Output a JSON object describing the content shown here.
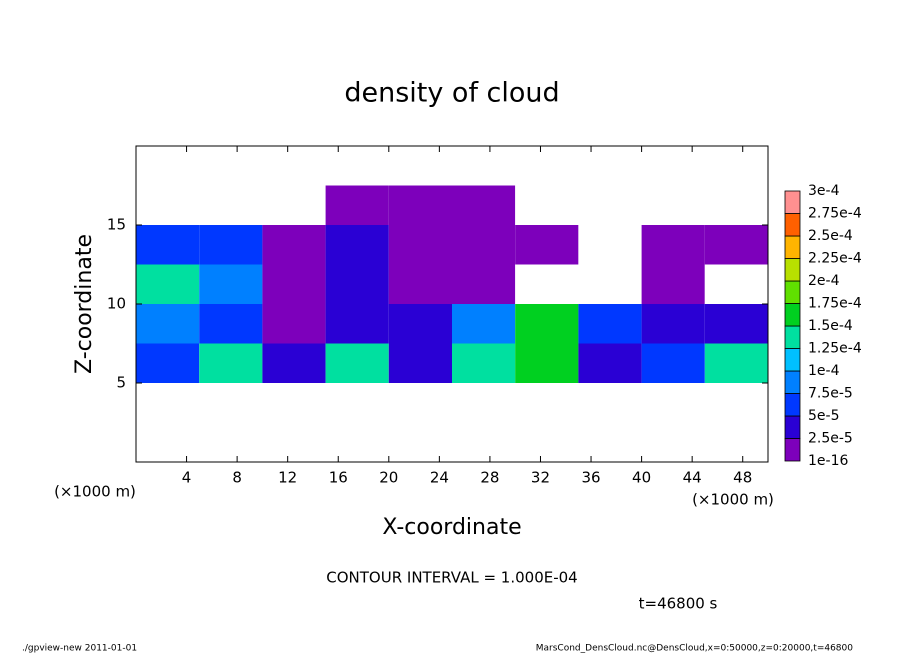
{
  "chart_data": {
    "type": "heatmap",
    "title": "density of cloud",
    "x_label": "X-coordinate",
    "y_label": "Z-coordinate",
    "x_unit_left": "(×1000 m)",
    "x_unit_right": "(×1000 m)",
    "contour_note": "CONTOUR INTERVAL = 1.000E-04",
    "time_note": "t=46800 s",
    "footer_left": "./gpview-new   2011-01-01",
    "footer_right": "MarsCond_DensCloud.nc@DensCloud,x=0:50000,z=0:20000,t=46800",
    "xlim": [
      0,
      50
    ],
    "ylim": [
      0,
      20
    ],
    "xticks": [
      4,
      8,
      12,
      16,
      20,
      24,
      28,
      32,
      36,
      40,
      44,
      48
    ],
    "yticks": [
      5,
      10,
      15
    ],
    "x": [
      2.5,
      7.5,
      12.5,
      17.5,
      22.5,
      27.5,
      32.5,
      37.5,
      42.5,
      47.5
    ],
    "y": [
      1.25,
      3.75,
      6.25,
      8.75,
      11.25,
      13.75,
      16.25,
      18.75
    ],
    "values": [
      [
        0,
        0,
        0,
        0,
        0,
        0,
        0,
        0,
        0,
        0
      ],
      [
        0,
        0,
        0,
        0,
        0,
        0,
        0,
        0,
        0,
        0
      ],
      [
        5e-05,
        0.00013,
        3e-05,
        0.00013,
        3e-05,
        0.00013,
        0.00016,
        3e-05,
        5e-05,
        0.00013
      ],
      [
        7.5e-05,
        6e-05,
        1e-05,
        3e-05,
        3e-05,
        8e-05,
        0.00015,
        5e-05,
        3e-05,
        3e-05
      ],
      [
        0.00013,
        8e-05,
        1e-05,
        3e-05,
        1e-05,
        1e-05,
        0,
        0,
        1e-05,
        0
      ],
      [
        5e-05,
        6e-05,
        1e-05,
        3e-05,
        1e-05,
        1e-05,
        1e-05,
        0,
        1e-05,
        1e-05
      ],
      [
        0,
        0,
        0,
        1e-05,
        1e-05,
        1e-05,
        0,
        0,
        0,
        0
      ],
      [
        0,
        0,
        0,
        0,
        0,
        0,
        0,
        0,
        0,
        0
      ]
    ],
    "colorbar": {
      "levels": [
        {
          "value": 1e-16,
          "label": "1e-16"
        },
        {
          "value": 2.5e-05,
          "label": "2.5e-5"
        },
        {
          "value": 5e-05,
          "label": "5e-5"
        },
        {
          "value": 7.5e-05,
          "label": "7.5e-5"
        },
        {
          "value": 0.0001,
          "label": "1e-4"
        },
        {
          "value": 0.000125,
          "label": "1.25e-4"
        },
        {
          "value": 0.00015,
          "label": "1.5e-4"
        },
        {
          "value": 0.000175,
          "label": "1.75e-4"
        },
        {
          "value": 0.0002,
          "label": "2e-4"
        },
        {
          "value": 0.000225,
          "label": "2.25e-4"
        },
        {
          "value": 0.00025,
          "label": "2.5e-4"
        },
        {
          "value": 0.000275,
          "label": "2.75e-4"
        },
        {
          "value": 0.0003,
          "label": "3e-4"
        }
      ],
      "colors": [
        "#7d00bb",
        "#2a00d4",
        "#0038ff",
        "#0080ff",
        "#00c0ff",
        "#00e0a0",
        "#00d020",
        "#60e000",
        "#b8e000",
        "#ffb400",
        "#ff6000",
        "#ff1010"
      ],
      "top_color": "#ff9090"
    }
  }
}
